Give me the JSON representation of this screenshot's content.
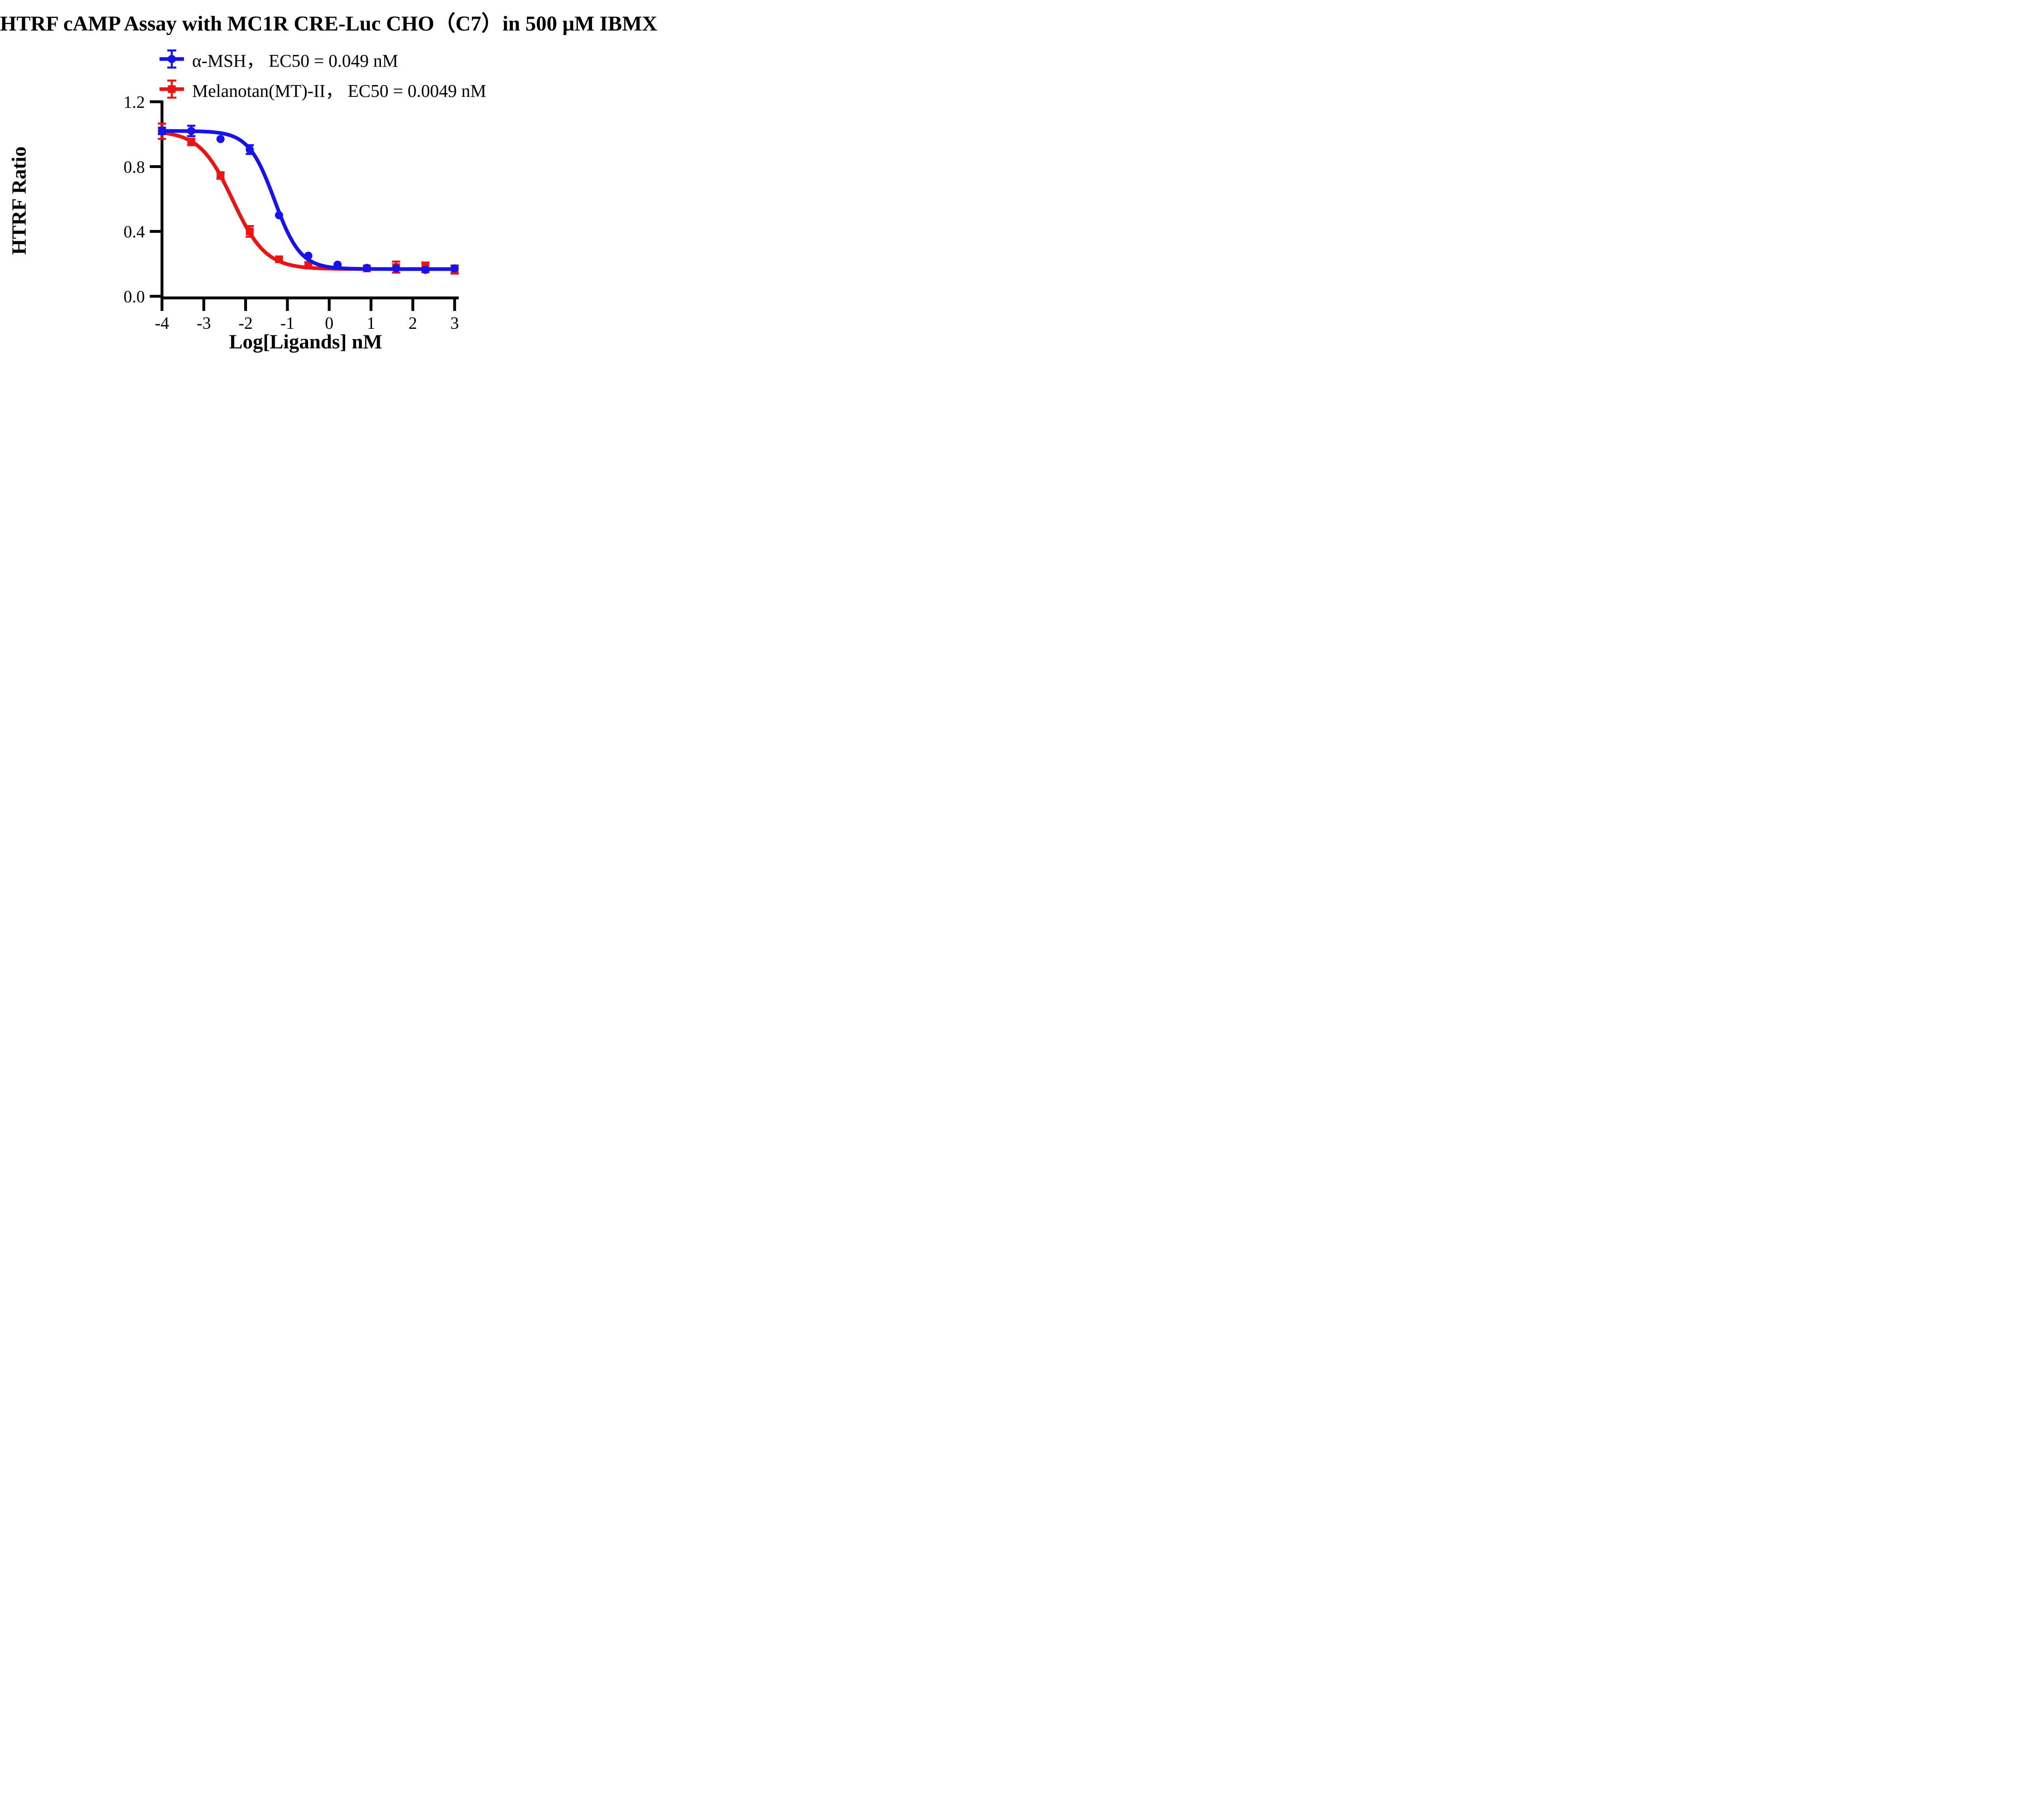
{
  "title": "HTRF cAMP Assay with MC1R CRE-Luc CHO（C7）in 500 μM IBMX",
  "legend": [
    {
      "label": "α-MSH， EC50 = 0.049 nM",
      "series": "α-MSH"
    },
    {
      "label": "Melanotan(MT)-II， EC50 = 0.0049 nM",
      "series": "Melanotan(MT)-II"
    }
  ],
  "colors": {
    "background": "#ffffff",
    "axis": "#000000",
    "alpha_msh": "#1712ee",
    "melanotan": "#ee1212"
  },
  "chart_data": {
    "type": "scatter",
    "title": "HTRF cAMP Assay with MC1R CRE-Luc CHO（C7）in 500 μM IBMX",
    "xlabel": "Log[Ligands] nM",
    "ylabel": "HTRF Ratio",
    "xlim": [
      -4,
      3
    ],
    "ylim": [
      0,
      1.2
    ],
    "grid": false,
    "legend_position": "above-plot-left",
    "x_ticks": [
      -4,
      -3,
      -2,
      -1,
      0,
      1,
      2,
      3
    ],
    "x_tick_labels": [
      "-4",
      "-3",
      "-2",
      "-1",
      "0",
      "1",
      "2",
      "3"
    ],
    "y_ticks": [
      0.0,
      0.4,
      0.8,
      1.2
    ],
    "y_tick_labels": [
      "0.0",
      "0.4",
      "0.8",
      "1.2"
    ],
    "x": [
      -4,
      -3.3,
      -2.6,
      -1.9,
      -1.2,
      -0.5,
      0.2,
      0.9,
      1.6,
      2.3,
      3
    ],
    "series": [
      {
        "name": "α-MSH",
        "ec50_label": "EC50 = 0.049 nM",
        "ec50_nM": 0.049,
        "color": "#1712ee",
        "marker": "circle",
        "values": [
          1.02,
          1.02,
          0.97,
          0.905,
          0.5,
          0.25,
          0.195,
          0.175,
          0.172,
          0.163,
          0.172
        ],
        "errors": [
          0.02,
          0.032,
          0.015,
          0.027,
          0.012,
          0.01,
          0.008,
          0.006,
          0.006,
          0.006,
          0.006
        ],
        "fit": {
          "model": "4PL",
          "top": 1.02,
          "bottom": 0.168,
          "logec50": -1.31,
          "hill": 1.4
        }
      },
      {
        "name": "Melanotan(MT)-II",
        "ec50_label": "EC50 = 0.0049 nM",
        "ec50_nM": 0.0049,
        "color": "#ee1212",
        "marker": "square",
        "values": [
          1.018,
          0.952,
          0.745,
          0.4,
          0.228,
          0.193,
          0.183,
          0.172,
          0.18,
          0.178,
          0.165
        ],
        "errors": [
          0.047,
          0.02,
          0.02,
          0.033,
          0.015,
          0.012,
          0.012,
          0.012,
          0.034,
          0.03,
          0.025
        ],
        "fit": {
          "model": "4PL",
          "top": 1.02,
          "bottom": 0.168,
          "logec50": -2.31,
          "hill": 1.1
        }
      }
    ]
  }
}
